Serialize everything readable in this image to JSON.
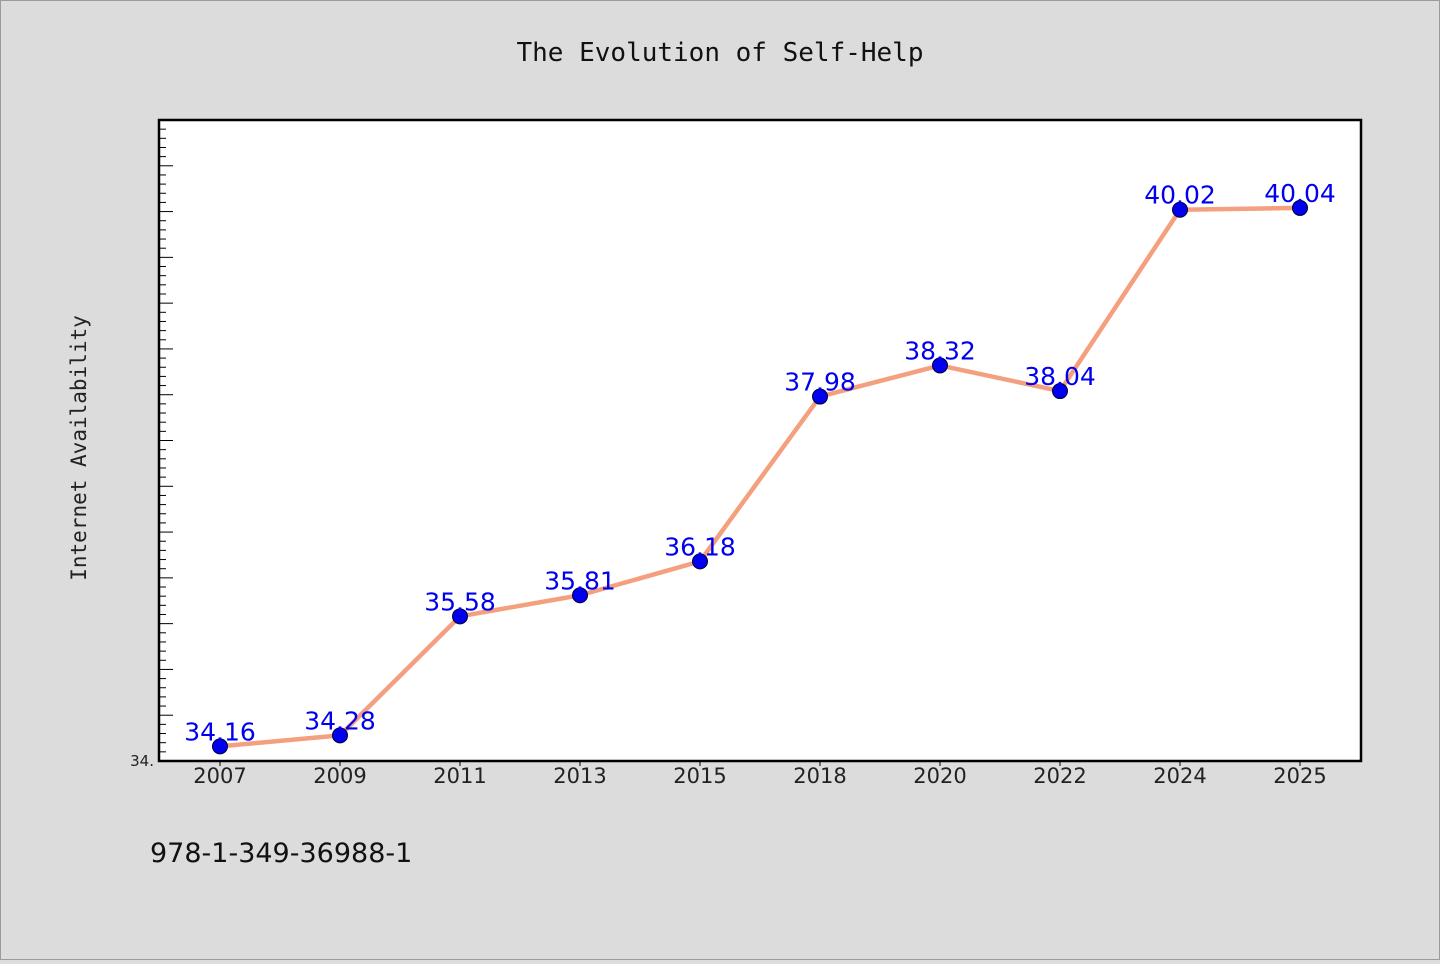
{
  "chart_data": {
    "type": "line",
    "title": "The Evolution of Self-Help",
    "xlabel": "",
    "ylabel": "Internet Availability",
    "categories": [
      "2007",
      "2009",
      "2011",
      "2013",
      "2015",
      "2018",
      "2020",
      "2022",
      "2024",
      "2025"
    ],
    "series": [
      {
        "values": [
          34.16,
          34.28,
          35.58,
          35.81,
          36.18,
          37.98,
          38.32,
          38.04,
          40.02,
          40.04
        ]
      }
    ],
    "data_labels": [
      "34.16",
      "34.28",
      "35.58",
      "35.81",
      "36.18",
      "37.98",
      "38.32",
      "38.04",
      "40.02",
      "40.04"
    ],
    "ylim": [
      34.0,
      41.0
    ],
    "y_tick_label_shown": "34.",
    "grid": false,
    "legend": "none",
    "colors": {
      "line": "#f4a07f",
      "marker": "#0000ee",
      "label": "#0000ee",
      "background": "#dcdcdc",
      "plot_background": "#ffffff"
    }
  },
  "footer": {
    "isbn": "978-1-349-36988-1"
  }
}
